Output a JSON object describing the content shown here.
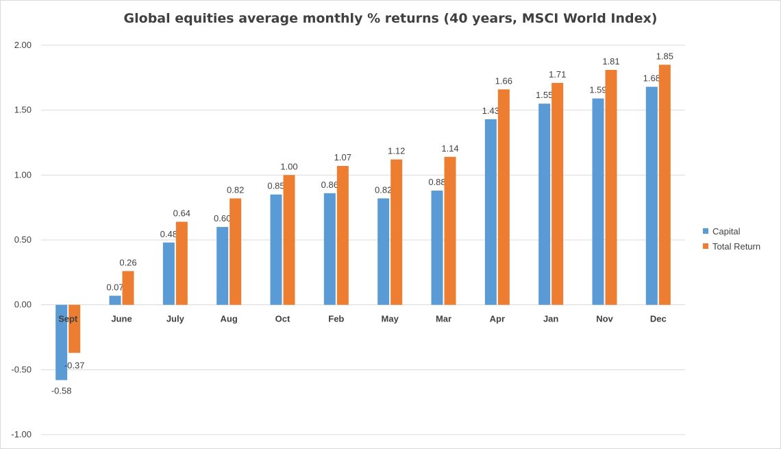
{
  "chart_data": {
    "type": "bar",
    "title": "Global equities average monthly % returns (40 years, MSCI World Index)",
    "xlabel": "",
    "ylabel": "",
    "ylim": [
      -1.0,
      2.0
    ],
    "yticks": [
      "2.00",
      "1.50",
      "1.00",
      "0.50",
      "0.00",
      "-0.50",
      "-1.00"
    ],
    "categories": [
      "Sept",
      "June",
      "July",
      "Aug",
      "Oct",
      "Feb",
      "May",
      "Mar",
      "Apr",
      "Jan",
      "Nov",
      "Dec"
    ],
    "series": [
      {
        "name": "Capital",
        "color": "#5b9bd5",
        "values": [
          -0.58,
          0.07,
          0.48,
          0.6,
          0.85,
          0.86,
          0.82,
          0.88,
          1.43,
          1.55,
          1.59,
          1.68
        ]
      },
      {
        "name": "Total Return",
        "color": "#ed7d31",
        "values": [
          -0.37,
          0.26,
          0.64,
          0.82,
          1.0,
          1.07,
          1.12,
          1.14,
          1.66,
          1.71,
          1.81,
          1.85
        ]
      }
    ],
    "grid": true,
    "legend_position": "right"
  }
}
